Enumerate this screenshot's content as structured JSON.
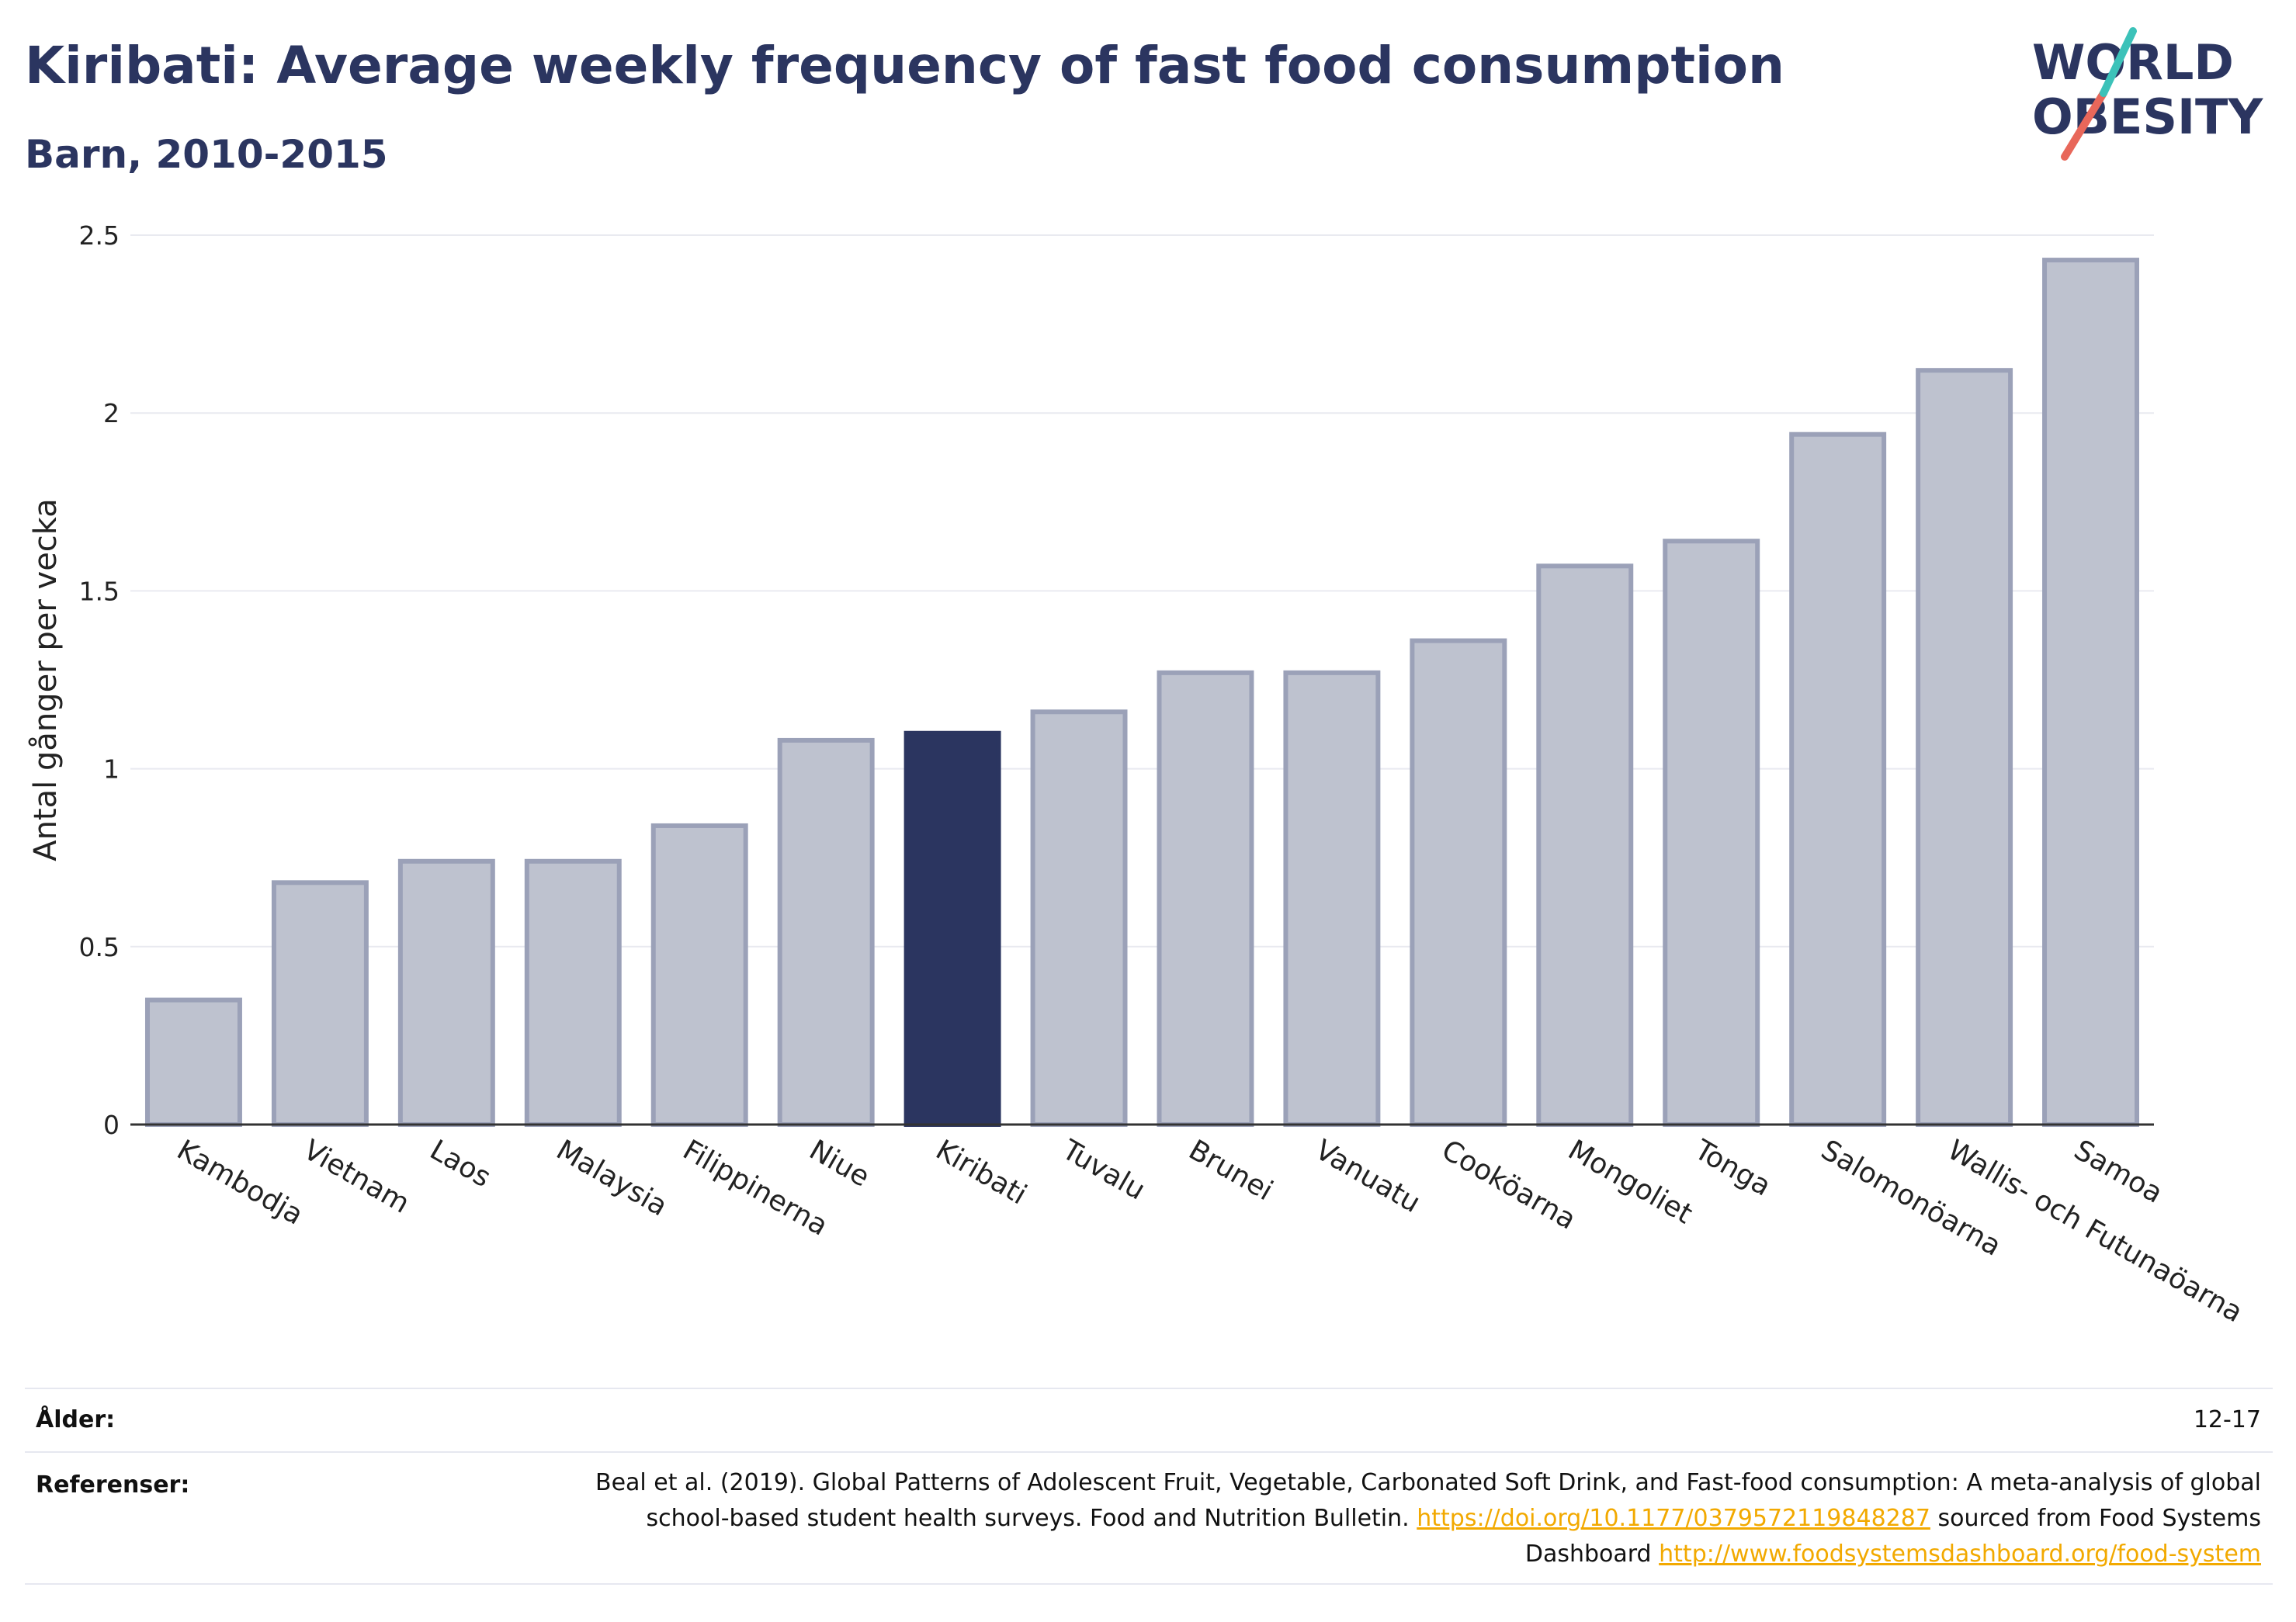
{
  "header": {
    "title": "Kiribati: Average weekly frequency of fast food consumption",
    "subtitle": "Barn, 2010-2015"
  },
  "logo": {
    "line1": "WORLD",
    "line2": "OBESITY",
    "colors": {
      "navy": "#2b3560",
      "teal": "#3cc2b9",
      "coral": "#e8675a"
    }
  },
  "chart_data": {
    "type": "bar",
    "ylabel": "Antal gånger per vecka",
    "ylim": [
      0,
      2.5
    ],
    "yticks": [
      0,
      0.5,
      1,
      1.5,
      2,
      2.5
    ],
    "ytick_labels": [
      "0",
      "0.5",
      "1",
      "1.5",
      "2",
      "2.5"
    ],
    "categories": [
      "Kambodja",
      "Vietnam",
      "Laos",
      "Malaysia",
      "Filippinerna",
      "Niue",
      "Kiribati",
      "Tuvalu",
      "Brunei",
      "Vanuatu",
      "Cookö­arna",
      "Mongoliet",
      "Tonga",
      "Salomonöarna",
      "Wallis- och Futunaöarna",
      "Samoa"
    ],
    "values": [
      0.35,
      0.68,
      0.74,
      0.74,
      0.84,
      1.08,
      1.1,
      1.16,
      1.27,
      1.27,
      1.36,
      1.57,
      1.64,
      1.94,
      2.12,
      2.43
    ],
    "highlight": "Kiribati",
    "grid": true,
    "colors": {
      "bar": "#bec2cf",
      "bar_edge": "#9ba1b8",
      "highlight": "#2b3560"
    }
  },
  "meta": {
    "age_label": "Ålder:",
    "age_value": "12-17",
    "ref_label": "Referenser:",
    "ref_text1": "Beal et al. (2019). Global Patterns of Adolescent Fruit, Vegetable, Carbonated Soft Drink, and Fast-food consumption: A meta-analysis of global school-based student health surveys. Food and Nutrition Bulletin.",
    "ref_link1": "https://doi.org/10.1177/0379572119848287",
    "ref_text2": "sourced from Food Systems Dashboard",
    "ref_link2": "http://www.foodsystemsdashboard.org/food-system"
  }
}
